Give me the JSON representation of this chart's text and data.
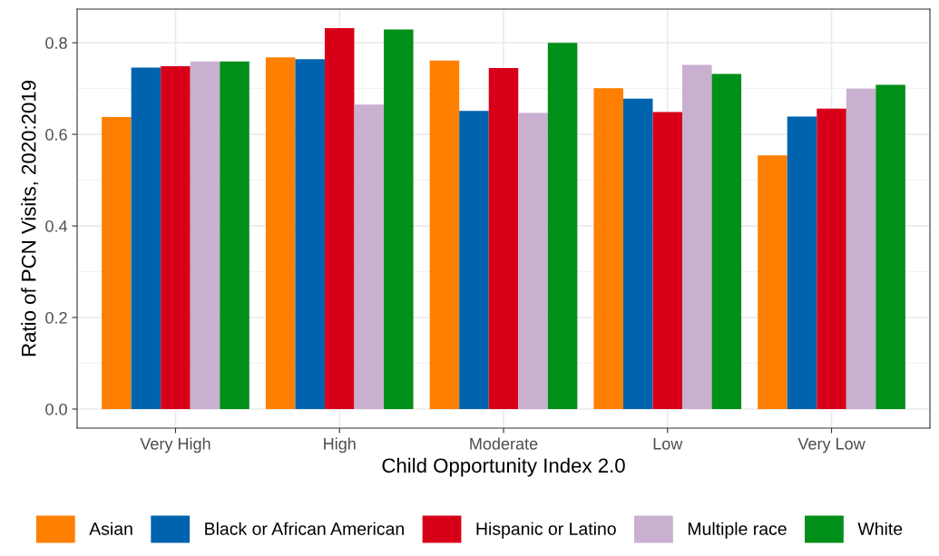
{
  "chart_data": {
    "type": "bar",
    "xlabel": "Child Opportunity Index 2.0",
    "ylabel": "Ratio of PCN Visits, 2020:2019",
    "categories": [
      "Very High",
      "High",
      "Moderate",
      "Low",
      "Very Low"
    ],
    "series": [
      {
        "name": "Asian",
        "color": "#ff7f00",
        "values": [
          0.638,
          0.768,
          0.761,
          0.701,
          0.554
        ]
      },
      {
        "name": "Black or African American",
        "color": "#0063ae",
        "values": [
          0.746,
          0.764,
          0.651,
          0.678,
          0.639
        ]
      },
      {
        "name": "Hispanic or Latino",
        "color": "#d80019",
        "values": [
          0.749,
          0.832,
          0.745,
          0.649,
          0.656
        ]
      },
      {
        "name": "Multiple race",
        "color": "#cab0d0",
        "values": [
          0.759,
          0.665,
          0.647,
          0.752,
          0.7
        ]
      },
      {
        "name": "White",
        "color": "#008f19",
        "values": [
          0.759,
          0.829,
          0.8,
          0.732,
          0.708
        ]
      }
    ],
    "ylim": [
      -0.0416,
      0.8736
    ],
    "yticks": [
      {
        "value": 0,
        "label": "0.0"
      },
      {
        "value": 0.2,
        "label": "0.2"
      },
      {
        "value": 0.4,
        "label": "0.4"
      },
      {
        "value": 0.6,
        "label": "0.6"
      },
      {
        "value": 0.8,
        "label": "0.8"
      }
    ],
    "grid": true,
    "legend": "bottom"
  }
}
